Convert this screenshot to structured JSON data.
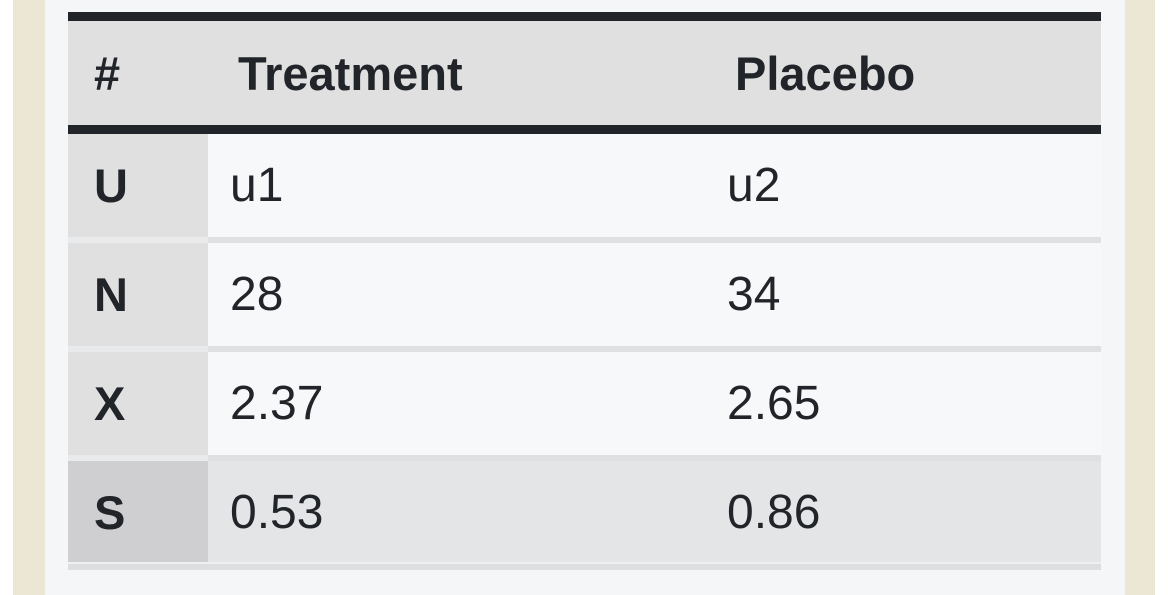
{
  "chart_data": {
    "type": "table",
    "columns": [
      "#",
      "Treatment",
      "Placebo"
    ],
    "rows": [
      [
        "U",
        "u1",
        "u2"
      ],
      [
        "N",
        "28",
        "34"
      ],
      [
        "X",
        "2.37",
        "2.65"
      ],
      [
        "S",
        "0.53",
        "0.86"
      ]
    ],
    "highlighted_row_label": "S"
  },
  "colors": {
    "outer_edge_white": "#ffffff",
    "page_margin_beige": "#ece6d4",
    "content_background": "#f5f6f8",
    "header_cell_gray": "#e0e0e1",
    "row_header_gray": "#e0e0e1",
    "highlighted_row_header_gray": "#cfcfd1",
    "highlighted_row_cell_gray": "#e4e5e7",
    "data_cell_background": "#f7f8fa",
    "heavy_rule_dark": "#212529",
    "row_separator": "#dee0e2",
    "text": "#212529"
  }
}
